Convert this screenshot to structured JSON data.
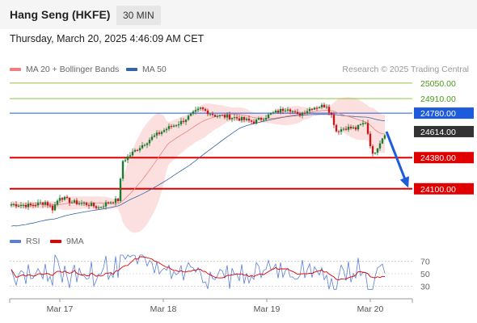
{
  "header": {
    "title": "Hang Seng (HKFE)",
    "interval": "30 MIN"
  },
  "timestamp": "Thursday, March 20, 2025 4:46:09 AM CET",
  "credit": "Research © 2025 Trading Central",
  "colors": {
    "ma20": "#f08080",
    "ma50": "#3465a4",
    "bands": "#fbd5d5",
    "support": "#e00000",
    "pivot": "#1e5bdc",
    "resistance": "#8cc63f",
    "bull": "#1d7a2e",
    "bear": "#c21818",
    "last": "#333333",
    "rsi": "#5b7fd6",
    "rsi_ma": "#e00000"
  },
  "chart_data": [
    {
      "type": "line",
      "title": "",
      "legend": [
        {
          "name": "MA 20 + Bollinger Bands",
          "color": "#f08080"
        },
        {
          "name": "MA 50",
          "color": "#3465a4"
        }
      ],
      "legend_position": "top-left",
      "x_ticks": [
        "Mar 17",
        "Mar 18",
        "Mar 19",
        "Mar 20"
      ],
      "levels": [
        {
          "value": 25050,
          "label": "25050.00",
          "role": "resistance"
        },
        {
          "value": 24910,
          "label": "24910.00",
          "role": "resistance"
        },
        {
          "value": 24780,
          "label": "24780.00",
          "role": "pivot"
        },
        {
          "value": 24614,
          "label": "24614.00",
          "role": "last"
        },
        {
          "value": 24380,
          "label": "24380.00",
          "role": "support"
        },
        {
          "value": 24100,
          "label": "24100.00",
          "role": "support"
        }
      ],
      "ylim": [
        23750,
        25100
      ],
      "projection": {
        "from": 24614,
        "to": 24100
      },
      "grid": false
    },
    {
      "type": "line",
      "title": "",
      "legend": [
        {
          "name": "RSI",
          "color": "#5b7fd6"
        },
        {
          "name": "9MA",
          "color": "#e00000"
        }
      ],
      "y_ticks": [
        "70",
        "50",
        "30"
      ],
      "ylim": [
        15,
        85
      ]
    }
  ]
}
